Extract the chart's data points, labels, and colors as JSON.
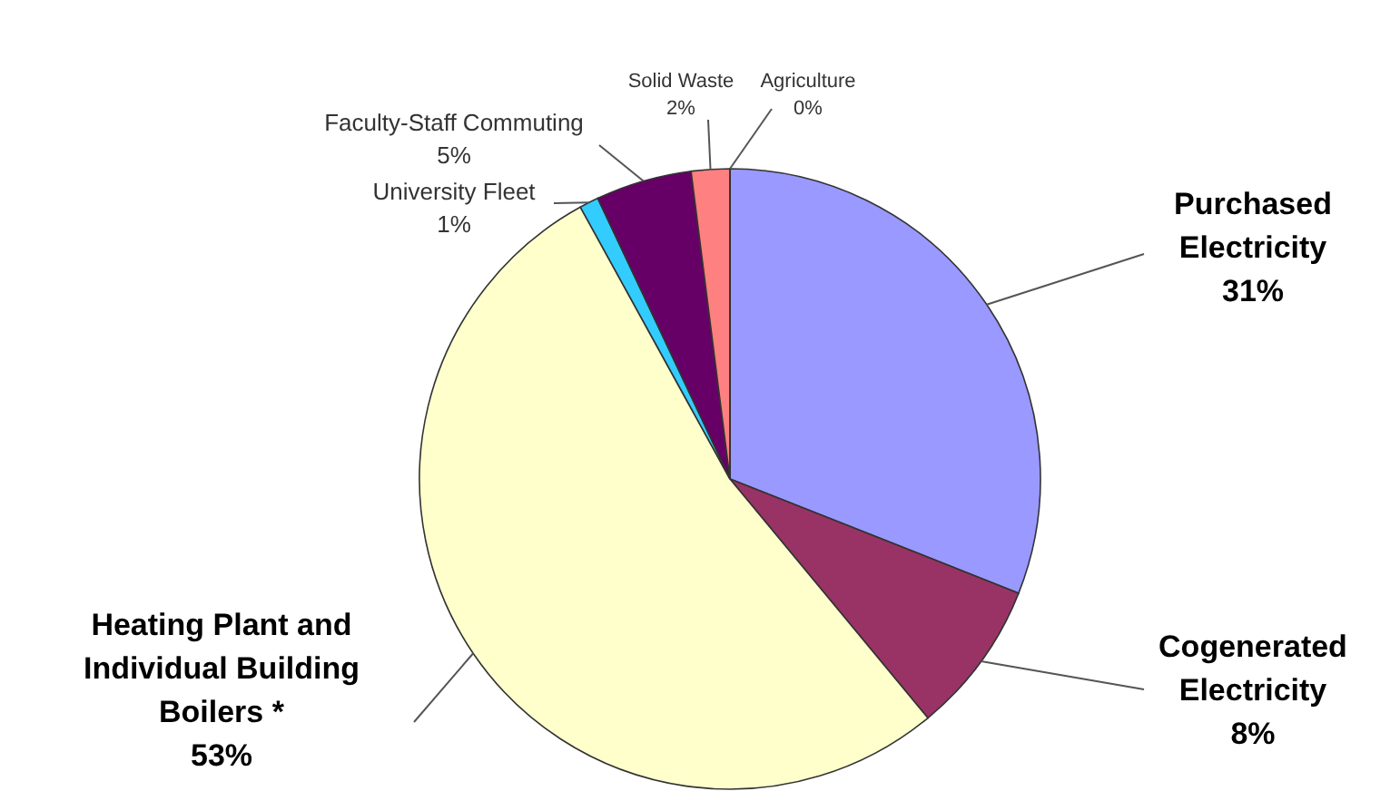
{
  "chart_data": {
    "type": "pie",
    "categories": [
      "Purchased Electricity",
      "Cogenerated Electricity",
      "Heating Plant and Individual Building Boilers *",
      "University Fleet",
      "Faculty-Staff Commuting",
      "Solid Waste",
      "Agriculture"
    ],
    "values": [
      31,
      8,
      53,
      1,
      5,
      2,
      0
    ],
    "value_labels": [
      "31%",
      "8%",
      "53%",
      "1%",
      "5%",
      "2%",
      "0%"
    ],
    "colors": [
      "#9999ff",
      "#993366",
      "#ffffcc",
      "#33ccff",
      "#660066",
      "#ff8080",
      "#ccffcc"
    ]
  }
}
